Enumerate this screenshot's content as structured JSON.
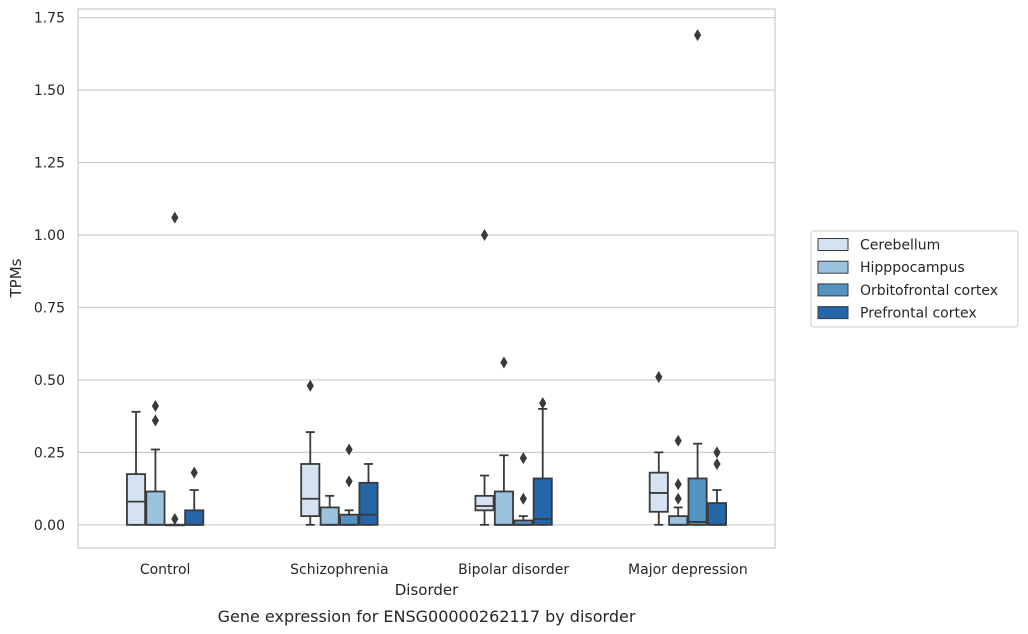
{
  "chart_data": {
    "type": "box",
    "caption": "Gene expression for ENSG00000262117 by disorder",
    "xlabel": "Disorder",
    "ylabel": "TPMs",
    "ylim": [
      -0.08,
      1.78
    ],
    "yticks": [
      "0.00",
      "0.25",
      "0.50",
      "0.75",
      "1.00",
      "1.25",
      "1.50",
      "1.75"
    ],
    "categories": [
      "Control",
      "Schizophrenia",
      "Bipolar disorder",
      "Major depression"
    ],
    "grid": "horizontal",
    "legend_position": "right-center",
    "series": [
      {
        "name": "Cerebellum",
        "color": "#d4e2f1",
        "boxes": [
          {
            "whislo": 0.0,
            "q1": 0.0,
            "med": 0.08,
            "q3": 0.175,
            "whishi": 0.39,
            "fliers": []
          },
          {
            "whislo": 0.0,
            "q1": 0.03,
            "med": 0.09,
            "q3": 0.21,
            "whishi": 0.32,
            "fliers": [
              0.48
            ]
          },
          {
            "whislo": 0.0,
            "q1": 0.05,
            "med": 0.065,
            "q3": 0.1,
            "whishi": 0.17,
            "fliers": [
              1.0
            ]
          },
          {
            "whislo": 0.0,
            "q1": 0.045,
            "med": 0.11,
            "q3": 0.18,
            "whishi": 0.25,
            "fliers": [
              0.51
            ]
          }
        ]
      },
      {
        "name": "Hipppocampus",
        "color": "#9bc3e0",
        "boxes": [
          {
            "whislo": 0.0,
            "q1": 0.0,
            "med": 0.0,
            "q3": 0.115,
            "whishi": 0.26,
            "fliers": [
              0.36,
              0.41
            ]
          },
          {
            "whislo": 0.0,
            "q1": 0.0,
            "med": 0.0,
            "q3": 0.06,
            "whishi": 0.1,
            "fliers": []
          },
          {
            "whislo": 0.0,
            "q1": 0.0,
            "med": 0.0,
            "q3": 0.115,
            "whishi": 0.24,
            "fliers": [
              0.56
            ]
          },
          {
            "whislo": 0.0,
            "q1": 0.0,
            "med": 0.0,
            "q3": 0.03,
            "whishi": 0.06,
            "fliers": [
              0.09,
              0.14,
              0.29
            ]
          }
        ]
      },
      {
        "name": "Orbitofrontal cortex",
        "color": "#5293c2",
        "boxes": [
          {
            "whislo": 0.0,
            "q1": 0.0,
            "med": 0.0,
            "q3": 0.0,
            "whishi": 0.0,
            "fliers": [
              0.02,
              1.06
            ]
          },
          {
            "whislo": 0.0,
            "q1": 0.0,
            "med": 0.0,
            "q3": 0.035,
            "whishi": 0.05,
            "fliers": [
              0.15,
              0.26
            ]
          },
          {
            "whislo": 0.0,
            "q1": 0.0,
            "med": 0.0,
            "q3": 0.015,
            "whishi": 0.03,
            "fliers": [
              0.09,
              0.23
            ]
          },
          {
            "whislo": 0.0,
            "q1": 0.0,
            "med": 0.01,
            "q3": 0.16,
            "whishi": 0.28,
            "fliers": [
              1.69
            ]
          }
        ]
      },
      {
        "name": "Prefrontal cortex",
        "color": "#2566a8",
        "boxes": [
          {
            "whislo": 0.0,
            "q1": 0.0,
            "med": 0.0,
            "q3": 0.05,
            "whishi": 0.12,
            "fliers": [
              0.18
            ]
          },
          {
            "whislo": 0.0,
            "q1": 0.0,
            "med": 0.035,
            "q3": 0.145,
            "whishi": 0.21,
            "fliers": []
          },
          {
            "whislo": 0.0,
            "q1": 0.0,
            "med": 0.02,
            "q3": 0.16,
            "whishi": 0.4,
            "fliers": [
              0.42
            ]
          },
          {
            "whislo": 0.0,
            "q1": 0.0,
            "med": 0.0,
            "q3": 0.075,
            "whishi": 0.12,
            "fliers": [
              0.21,
              0.25
            ]
          }
        ]
      }
    ]
  }
}
